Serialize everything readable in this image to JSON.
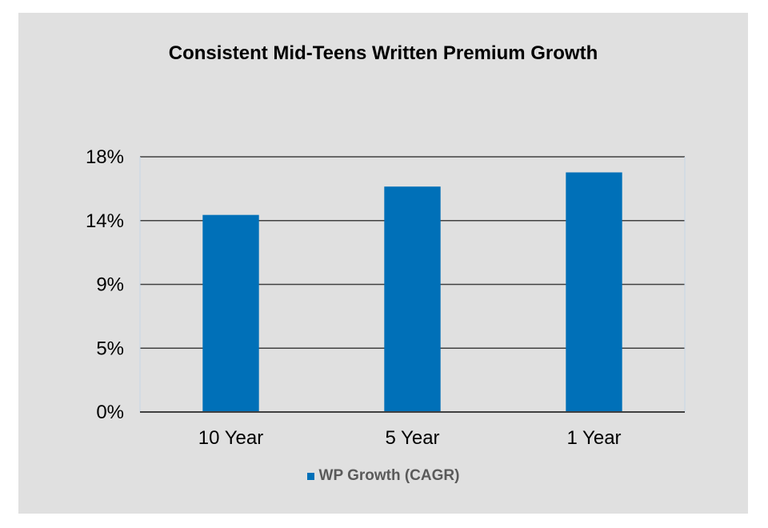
{
  "chart_data": {
    "type": "bar",
    "title": "Consistent Mid-Teens Written Premium Growth",
    "categories": [
      "10 Year",
      "5 Year",
      "1 Year"
    ],
    "series": [
      {
        "name": "WP Growth (CAGR)",
        "values": [
          13.9,
          15.9,
          16.9
        ]
      }
    ],
    "y_ticks": [
      0,
      4.5,
      9,
      13.5,
      18
    ],
    "y_tick_labels": [
      "0%",
      "5%",
      "9%",
      "14%",
      "18%"
    ],
    "ylim": [
      0,
      18
    ],
    "xlabel": "",
    "ylabel": "",
    "grid": true,
    "legend": "bottom"
  },
  "colors": {
    "panel": "#e0e0e0",
    "bar": "#0070b8",
    "gridline": "#404040",
    "axis": "#404040"
  }
}
